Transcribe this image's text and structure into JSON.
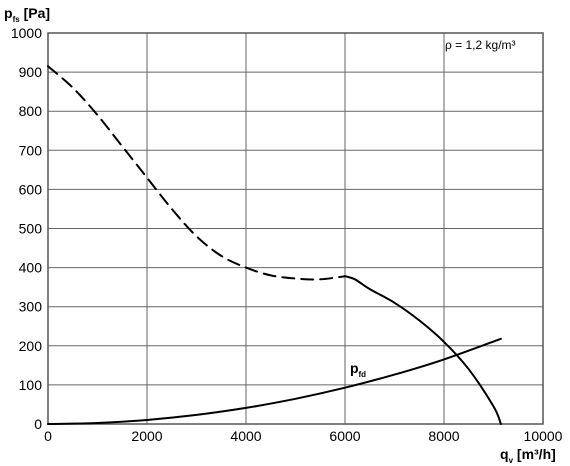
{
  "chart_data": {
    "type": "line",
    "ylabel": {
      "main": "p",
      "sub": "fs",
      "unit": " [Pa]"
    },
    "xlabel": {
      "main": "q",
      "sub": "v",
      "unit": " [m³/h]"
    },
    "xlim": [
      0,
      10000
    ],
    "ylim": [
      0,
      1000
    ],
    "x_ticks": [
      "0",
      "2000",
      "4000",
      "6000",
      "8000",
      "10000"
    ],
    "y_ticks": [
      "0",
      "100",
      "200",
      "300",
      "400",
      "500",
      "600",
      "700",
      "800",
      "900",
      "1000"
    ],
    "grid": true,
    "annotation": "ρ = 1,2 kg/m³",
    "series": [
      {
        "style": "dashed",
        "x": [
          0,
          500,
          1000,
          1500,
          2000,
          2500,
          3000,
          3500,
          4000,
          4500,
          5000,
          5500,
          6000
        ],
        "y": [
          915,
          860,
          790,
          710,
          630,
          550,
          480,
          430,
          400,
          380,
          372,
          370,
          378
        ]
      },
      {
        "style": "solid",
        "x": [
          6000,
          6200,
          6500,
          7000,
          7500,
          8000,
          8500,
          9000,
          9150
        ],
        "y": [
          378,
          370,
          345,
          310,
          265,
          210,
          140,
          45,
          0
        ]
      },
      {
        "label": {
          "main": "p",
          "sub": "fd"
        },
        "label_at": [
          6100,
          130
        ],
        "style": "solid",
        "x": [
          0,
          1000,
          2000,
          3000,
          4000,
          5000,
          6000,
          7000,
          8000,
          9150
        ],
        "y": [
          0,
          2.6,
          10.3,
          23.2,
          41.3,
          64.5,
          92.9,
          126.4,
          165.2,
          218
        ]
      }
    ]
  }
}
